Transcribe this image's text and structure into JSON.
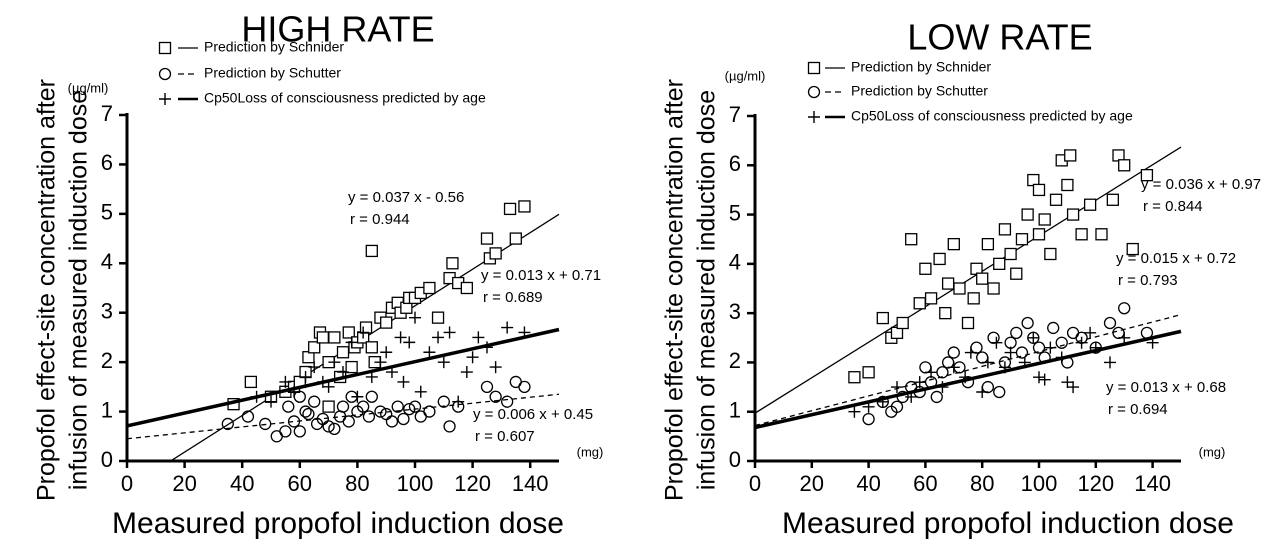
{
  "chart_data": [
    {
      "type": "scatter",
      "title": "HIGH RATE",
      "y_label": [
        "Propofol effect-site concentration after",
        "infusion of measured induction dose"
      ],
      "x_label": "Measured propofol induction dose",
      "y_unit": "(µg/ml)",
      "x_unit": "(mg)",
      "xlim": [
        0,
        150
      ],
      "ylim": [
        0,
        7
      ],
      "xticks": [
        0,
        20,
        40,
        60,
        80,
        100,
        120,
        140
      ],
      "yticks": [
        0,
        1,
        2,
        3,
        4,
        5,
        6,
        7
      ],
      "series": [
        {
          "name": "Prediction by Schnider",
          "color": "#000000",
          "marker": "square",
          "line_width": 1.3,
          "dashed": false,
          "x": [
            37,
            43,
            50,
            55,
            58,
            60,
            62,
            63,
            65,
            67,
            68,
            70,
            72,
            74,
            75,
            77,
            79,
            80,
            82,
            83,
            85,
            85,
            88,
            90,
            92,
            94,
            95,
            97,
            98,
            100,
            102,
            105,
            108,
            112,
            113,
            115,
            118,
            125,
            126,
            128,
            133,
            135,
            138,
            78,
            70,
            86
          ],
          "values": [
            1.15,
            1.6,
            1.3,
            1.4,
            1.5,
            1.6,
            1.8,
            2.1,
            2.3,
            2.6,
            2.5,
            2.0,
            2.5,
            1.7,
            2.2,
            2.6,
            2.3,
            2.4,
            2.5,
            2.7,
            4.25,
            2.3,
            2.9,
            2.8,
            3.1,
            3.2,
            3.0,
            3.1,
            3.3,
            3.3,
            3.4,
            3.5,
            2.9,
            3.7,
            4.0,
            3.6,
            3.5,
            4.5,
            4.1,
            4.2,
            5.1,
            4.5,
            5.15,
            1.9,
            1.1,
            2.0
          ],
          "fit": {
            "slope": 0.037,
            "intercept": -0.56,
            "equation": "y = 0.037 x - 0.56",
            "r": "r = 0.944"
          }
        },
        {
          "name": "Prediction by Schutter",
          "color": "#000000",
          "marker": "circle",
          "line_width": 1.3,
          "dashed": true,
          "x": [
            35,
            42,
            48,
            52,
            55,
            56,
            58,
            60,
            62,
            63,
            65,
            68,
            70,
            72,
            74,
            75,
            77,
            78,
            80,
            82,
            84,
            85,
            88,
            90,
            92,
            94,
            96,
            98,
            100,
            102,
            105,
            110,
            112,
            115,
            125,
            128,
            132,
            135,
            138,
            60,
            66
          ],
          "values": [
            0.75,
            0.9,
            0.75,
            0.5,
            0.6,
            1.1,
            0.8,
            1.3,
            1.0,
            0.95,
            1.2,
            0.85,
            0.7,
            0.65,
            0.9,
            1.1,
            0.8,
            1.3,
            1.0,
            1.1,
            0.9,
            1.3,
            1.0,
            0.95,
            0.8,
            1.1,
            0.85,
            1.05,
            1.1,
            0.9,
            1.0,
            1.2,
            0.7,
            1.1,
            1.5,
            1.3,
            1.2,
            1.6,
            1.5,
            0.6,
            0.75
          ],
          "fit": {
            "slope": 0.006,
            "intercept": 0.45,
            "equation": "y = 0.006 x + 0.45",
            "r": "r = 0.607"
          }
        },
        {
          "name": "Cp50Loss of consciousness predicted by age",
          "color": "#000000",
          "marker": "plus",
          "line_width": 3.5,
          "dashed": false,
          "x": [
            45,
            50,
            55,
            58,
            62,
            65,
            68,
            70,
            72,
            75,
            78,
            80,
            82,
            85,
            88,
            90,
            92,
            95,
            98,
            100,
            102,
            105,
            108,
            110,
            112,
            115,
            118,
            120,
            125,
            128,
            132,
            138,
            122,
            96
          ],
          "values": [
            1.3,
            1.2,
            1.6,
            1.4,
            1.7,
            1.9,
            1.6,
            1.5,
            2.0,
            1.8,
            2.4,
            1.3,
            2.6,
            1.7,
            2.0,
            2.2,
            1.8,
            2.5,
            2.4,
            2.9,
            1.4,
            2.2,
            2.5,
            2.0,
            2.6,
            1.2,
            1.8,
            2.1,
            2.3,
            1.9,
            2.7,
            2.6,
            2.5,
            1.6
          ],
          "fit": {
            "slope": 0.013,
            "intercept": 0.71,
            "equation": "y = 0.013 x + 0.71",
            "r": "r = 0.689"
          }
        }
      ]
    },
    {
      "type": "scatter",
      "title": "LOW RATE",
      "y_label": [
        "Propofol effect-site concentration after",
        "infusion of measured induction dose"
      ],
      "x_label": "Measured propofol induction dose",
      "y_unit": "(µg/ml)",
      "x_unit": "(mg)",
      "xlim": [
        0,
        150
      ],
      "ylim": [
        0,
        7
      ],
      "xticks": [
        0,
        20,
        40,
        60,
        80,
        100,
        120,
        140
      ],
      "yticks": [
        0,
        1,
        2,
        3,
        4,
        5,
        6,
        7
      ],
      "series": [
        {
          "name": "Prediction by Schnider",
          "color": "#000000",
          "marker": "square",
          "line_width": 1.3,
          "dashed": false,
          "x": [
            35,
            40,
            45,
            48,
            50,
            52,
            55,
            58,
            60,
            62,
            65,
            67,
            68,
            70,
            72,
            75,
            77,
            78,
            80,
            82,
            84,
            86,
            88,
            90,
            92,
            94,
            96,
            98,
            100,
            100,
            102,
            104,
            106,
            108,
            110,
            111,
            112,
            115,
            118,
            122,
            126,
            128,
            130,
            133,
            138
          ],
          "values": [
            1.7,
            1.8,
            2.9,
            2.5,
            2.6,
            2.8,
            4.5,
            3.2,
            3.9,
            3.3,
            4.1,
            3.0,
            3.6,
            4.4,
            3.5,
            2.8,
            3.3,
            3.9,
            3.7,
            4.4,
            3.5,
            4.0,
            4.7,
            4.2,
            3.8,
            4.5,
            5.0,
            5.7,
            4.6,
            5.5,
            4.9,
            4.2,
            5.3,
            6.1,
            5.6,
            6.2,
            5.0,
            4.6,
            5.2,
            4.6,
            5.3,
            6.2,
            6.0,
            4.3,
            5.8
          ],
          "fit": {
            "slope": 0.036,
            "intercept": 0.97,
            "equation": "y = 0.036 x + 0.97",
            "r": "r = 0.844"
          }
        },
        {
          "name": "Prediction by Schutter",
          "color": "#000000",
          "marker": "circle",
          "line_width": 1.3,
          "dashed": true,
          "x": [
            40,
            45,
            48,
            50,
            52,
            55,
            58,
            60,
            62,
            64,
            66,
            68,
            70,
            72,
            75,
            78,
            80,
            82,
            84,
            86,
            88,
            90,
            92,
            94,
            96,
            98,
            100,
            102,
            105,
            108,
            110,
            112,
            115,
            120,
            125,
            128,
            130,
            138
          ],
          "values": [
            0.85,
            1.2,
            1.0,
            1.1,
            1.3,
            1.5,
            1.4,
            1.9,
            1.6,
            1.3,
            1.8,
            2.0,
            2.2,
            1.9,
            1.6,
            2.3,
            2.1,
            1.5,
            2.5,
            1.4,
            2.0,
            2.4,
            2.6,
            2.2,
            2.8,
            2.5,
            2.3,
            2.1,
            2.7,
            2.4,
            2.0,
            2.6,
            2.5,
            2.3,
            2.8,
            2.6,
            3.1,
            2.6
          ],
          "fit": {
            "slope": 0.015,
            "intercept": 0.72,
            "equation": "y = 0.015 x + 0.72",
            "r": "r = 0.793"
          }
        },
        {
          "name": "Cp50Loss of consciousness predicted by age",
          "color": "#000000",
          "marker": "plus",
          "line_width": 3.5,
          "dashed": false,
          "x": [
            35,
            40,
            45,
            50,
            55,
            58,
            62,
            66,
            70,
            74,
            76,
            80,
            82,
            85,
            88,
            90,
            95,
            98,
            100,
            102,
            104,
            108,
            110,
            112,
            115,
            118,
            120,
            125,
            130,
            140
          ],
          "values": [
            1.0,
            1.1,
            1.2,
            1.5,
            1.3,
            1.6,
            1.8,
            1.5,
            1.9,
            1.7,
            2.2,
            1.4,
            2.0,
            2.4,
            1.9,
            2.2,
            2.0,
            2.5,
            1.7,
            1.65,
            2.3,
            2.1,
            1.6,
            1.5,
            2.4,
            2.6,
            2.3,
            2.0,
            2.5,
            2.4
          ],
          "fit": {
            "slope": 0.013,
            "intercept": 0.68,
            "equation": "y = 0.013 x + 0.68",
            "r": "r = 0.694"
          }
        }
      ]
    }
  ]
}
